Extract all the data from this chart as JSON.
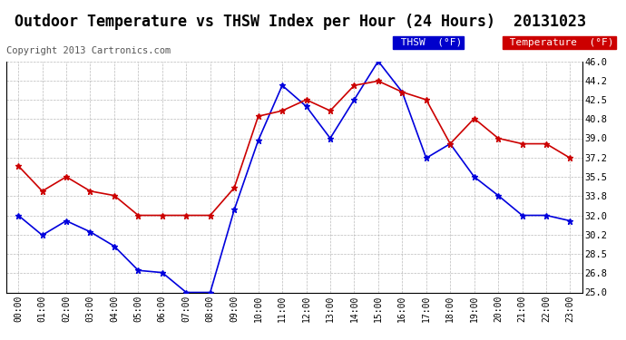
{
  "title": "Outdoor Temperature vs THSW Index per Hour (24 Hours)  20131023",
  "copyright": "Copyright 2013 Cartronics.com",
  "hours": [
    "00:00",
    "01:00",
    "02:00",
    "03:00",
    "04:00",
    "05:00",
    "06:00",
    "07:00",
    "08:00",
    "09:00",
    "10:00",
    "11:00",
    "12:00",
    "13:00",
    "14:00",
    "15:00",
    "16:00",
    "17:00",
    "18:00",
    "19:00",
    "20:00",
    "21:00",
    "22:00",
    "23:00"
  ],
  "thsw": [
    32.0,
    30.2,
    31.5,
    30.5,
    29.2,
    27.0,
    26.8,
    25.0,
    25.0,
    32.5,
    38.8,
    43.8,
    41.9,
    39.0,
    42.5,
    46.0,
    43.2,
    37.2,
    38.5,
    35.5,
    33.8,
    32.0,
    32.0,
    31.5
  ],
  "temp": [
    36.5,
    34.2,
    35.5,
    34.2,
    33.8,
    32.0,
    32.0,
    32.0,
    32.0,
    34.5,
    41.0,
    41.5,
    42.5,
    41.5,
    43.8,
    44.2,
    43.2,
    42.5,
    38.5,
    40.8,
    39.0,
    38.5,
    38.5,
    37.2
  ],
  "thsw_color": "#0000dd",
  "temp_color": "#cc0000",
  "ylim_min": 25.0,
  "ylim_max": 46.0,
  "yticks": [
    25.0,
    26.8,
    28.5,
    30.2,
    32.0,
    33.8,
    35.5,
    37.2,
    39.0,
    40.8,
    42.5,
    44.2,
    46.0
  ],
  "bg_color": "#ffffff",
  "grid_color": "#aaaaaa",
  "legend_thsw_bg": "#0000cc",
  "legend_temp_bg": "#cc0000",
  "legend_text_color": "#ffffff",
  "title_fontsize": 12,
  "copyright_fontsize": 7.5
}
